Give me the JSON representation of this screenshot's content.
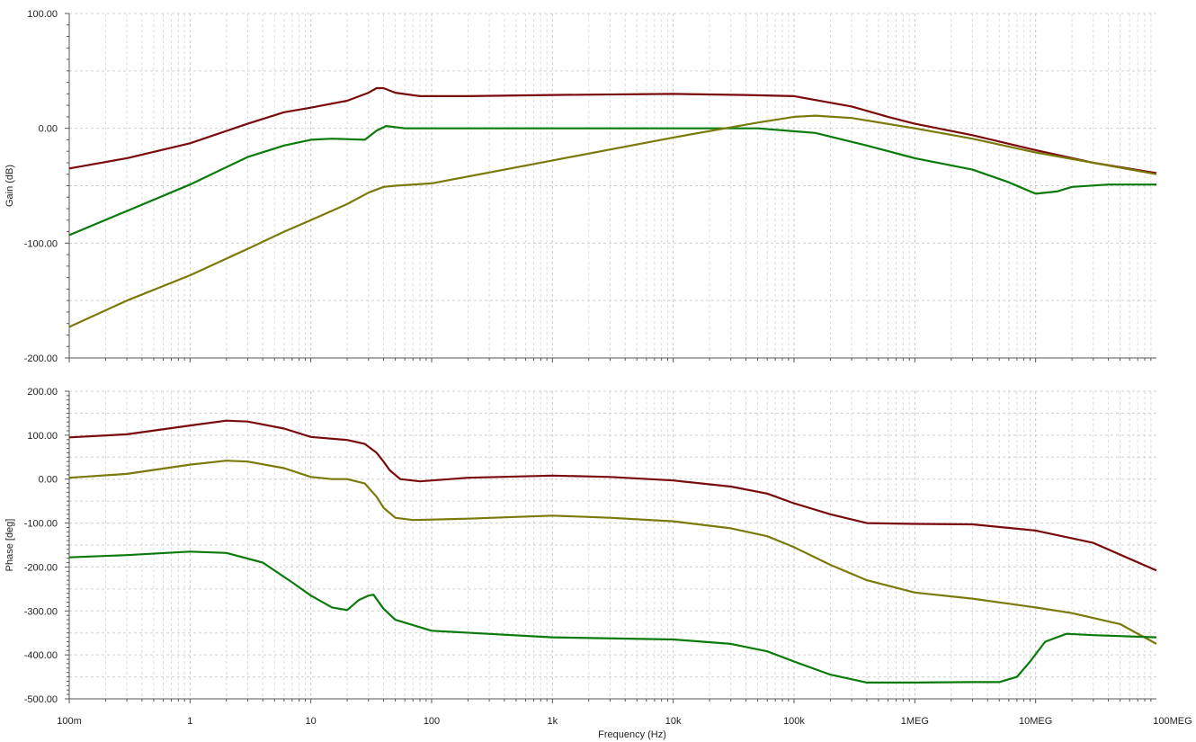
{
  "chart_data": [
    {
      "type": "line",
      "xscale": "log",
      "xlim": [
        0.1,
        100000000
      ],
      "ylim": [
        -200,
        100
      ],
      "ylabel": "Gain (dB)",
      "yticks": [
        100,
        0,
        -100,
        -200
      ],
      "ytick_labels": [
        "100.00",
        "0.00",
        "-100.00",
        "-200.00"
      ],
      "grid": true,
      "series": [
        {
          "color": "#7a0a0a",
          "points": [
            [
              0.1,
              -35
            ],
            [
              0.3,
              -26
            ],
            [
              1,
              -13
            ],
            [
              3,
              4
            ],
            [
              6,
              14
            ],
            [
              10,
              18
            ],
            [
              20,
              24
            ],
            [
              30,
              31
            ],
            [
              35,
              35
            ],
            [
              40,
              35
            ],
            [
              50,
              31
            ],
            [
              80,
              28
            ],
            [
              200,
              28
            ],
            [
              1000,
              29
            ],
            [
              10000,
              30
            ],
            [
              40000,
              29
            ],
            [
              100000,
              28
            ],
            [
              300000,
              19
            ],
            [
              600000,
              10
            ],
            [
              1000000,
              4
            ],
            [
              3000000,
              -6
            ],
            [
              10000000,
              -19
            ],
            [
              30000000,
              -30
            ],
            [
              100000000,
              -39
            ]
          ]
        },
        {
          "color": "#0a7a0a",
          "points": [
            [
              0.1,
              -93
            ],
            [
              0.3,
              -72
            ],
            [
              1,
              -49
            ],
            [
              3,
              -25
            ],
            [
              6,
              -15
            ],
            [
              10,
              -10
            ],
            [
              15,
              -9
            ],
            [
              28,
              -10
            ],
            [
              35,
              -2
            ],
            [
              42,
              2
            ],
            [
              60,
              0
            ],
            [
              1000,
              0
            ],
            [
              50000,
              0
            ],
            [
              150000,
              -4
            ],
            [
              400000,
              -15
            ],
            [
              1000000,
              -26
            ],
            [
              3000000,
              -36
            ],
            [
              6000000,
              -47
            ],
            [
              10000000,
              -57
            ],
            [
              15000000,
              -55
            ],
            [
              20000000,
              -51
            ],
            [
              40000000,
              -49
            ],
            [
              100000000,
              -49
            ]
          ]
        },
        {
          "color": "#7a7a0a",
          "points": [
            [
              0.1,
              -173
            ],
            [
              0.3,
              -150
            ],
            [
              1,
              -128
            ],
            [
              3,
              -105
            ],
            [
              6,
              -90
            ],
            [
              10,
              -80
            ],
            [
              20,
              -66
            ],
            [
              30,
              -56
            ],
            [
              40,
              -51
            ],
            [
              50,
              -50
            ],
            [
              100,
              -48
            ],
            [
              1000,
              -28
            ],
            [
              10000,
              -8
            ],
            [
              50000,
              5
            ],
            [
              100000,
              10
            ],
            [
              150000,
              11
            ],
            [
              300000,
              9
            ],
            [
              1000000,
              0
            ],
            [
              3000000,
              -9
            ],
            [
              10000000,
              -21
            ],
            [
              30000000,
              -30
            ],
            [
              100000000,
              -40
            ]
          ]
        }
      ]
    },
    {
      "type": "line",
      "xscale": "log",
      "xlim": [
        0.1,
        100000000
      ],
      "ylim": [
        -500,
        200
      ],
      "xlabel": "Frequency (Hz)",
      "ylabel": "Phase [deg]",
      "yticks": [
        200,
        100,
        0,
        -100,
        -200,
        -300,
        -400,
        -500
      ],
      "ytick_labels": [
        "200.00",
        "100.00",
        "0.00",
        "-100.00",
        "-200.00",
        "-300.00",
        "-400.00",
        "-500.00"
      ],
      "xticks": [
        0.1,
        1,
        10,
        100,
        1000,
        10000,
        100000,
        1000000,
        10000000,
        100000000
      ],
      "xtick_labels": [
        "100m",
        "1",
        "10",
        "100",
        "1k",
        "10k",
        "100k",
        "1MEG",
        "10MEG",
        "100MEG"
      ],
      "grid": true,
      "series": [
        {
          "color": "#7a0a0a",
          "points": [
            [
              0.1,
              95
            ],
            [
              0.3,
              102
            ],
            [
              1,
              122
            ],
            [
              2,
              133
            ],
            [
              3,
              131
            ],
            [
              6,
              115
            ],
            [
              10,
              96
            ],
            [
              20,
              89
            ],
            [
              28,
              80
            ],
            [
              35,
              60
            ],
            [
              40,
              40
            ],
            [
              45,
              20
            ],
            [
              55,
              0
            ],
            [
              80,
              -5
            ],
            [
              200,
              3
            ],
            [
              1000,
              8
            ],
            [
              3000,
              5
            ],
            [
              10000,
              -3
            ],
            [
              30000,
              -17
            ],
            [
              60000,
              -33
            ],
            [
              100000,
              -55
            ],
            [
              200000,
              -80
            ],
            [
              400000,
              -100
            ],
            [
              1000000,
              -102
            ],
            [
              3000000,
              -103
            ],
            [
              10000000,
              -117
            ],
            [
              30000000,
              -145
            ],
            [
              100000000,
              -208
            ]
          ]
        },
        {
          "color": "#7a7a0a",
          "points": [
            [
              0.1,
              3
            ],
            [
              0.3,
              12
            ],
            [
              1,
              33
            ],
            [
              2,
              42
            ],
            [
              3,
              40
            ],
            [
              6,
              25
            ],
            [
              10,
              5
            ],
            [
              15,
              0
            ],
            [
              20,
              0
            ],
            [
              28,
              -10
            ],
            [
              35,
              -40
            ],
            [
              40,
              -65
            ],
            [
              50,
              -88
            ],
            [
              70,
              -93
            ],
            [
              200,
              -90
            ],
            [
              1000,
              -83
            ],
            [
              3000,
              -88
            ],
            [
              10000,
              -96
            ],
            [
              30000,
              -112
            ],
            [
              60000,
              -130
            ],
            [
              100000,
              -155
            ],
            [
              200000,
              -195
            ],
            [
              400000,
              -230
            ],
            [
              1000000,
              -258
            ],
            [
              3000000,
              -272
            ],
            [
              10000000,
              -292
            ],
            [
              20000000,
              -305
            ],
            [
              50000000,
              -330
            ],
            [
              100000000,
              -375
            ]
          ]
        },
        {
          "color": "#0a7a0a",
          "points": [
            [
              0.1,
              -178
            ],
            [
              0.3,
              -173
            ],
            [
              1,
              -165
            ],
            [
              2,
              -168
            ],
            [
              4,
              -190
            ],
            [
              7,
              -235
            ],
            [
              10,
              -265
            ],
            [
              15,
              -292
            ],
            [
              20,
              -298
            ],
            [
              25,
              -275
            ],
            [
              30,
              -265
            ],
            [
              33,
              -263
            ],
            [
              40,
              -295
            ],
            [
              50,
              -320
            ],
            [
              100,
              -345
            ],
            [
              1000,
              -360
            ],
            [
              10000,
              -365
            ],
            [
              30000,
              -375
            ],
            [
              60000,
              -392
            ],
            [
              100000,
              -415
            ],
            [
              200000,
              -445
            ],
            [
              400000,
              -463
            ],
            [
              1000000,
              -463
            ],
            [
              3000000,
              -462
            ],
            [
              5000000,
              -462
            ],
            [
              7000000,
              -450
            ],
            [
              9000000,
              -415
            ],
            [
              12000000,
              -370
            ],
            [
              18000000,
              -352
            ],
            [
              30000000,
              -355
            ],
            [
              100000000,
              -360
            ]
          ]
        }
      ]
    }
  ]
}
